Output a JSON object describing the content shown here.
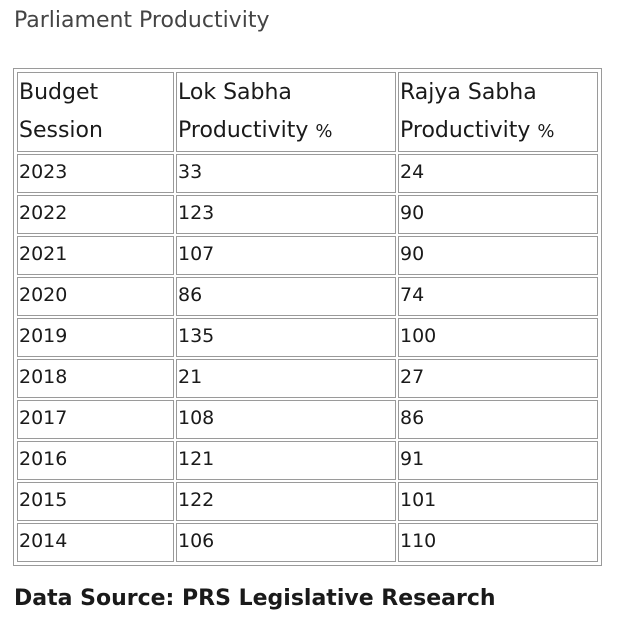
{
  "title": "Parliament Productivity",
  "table": {
    "headers": [
      {
        "line1": "Budget",
        "line2": "Session",
        "unit": ""
      },
      {
        "line1": "Lok Sabha",
        "line2": "Productivity",
        "unit": "%"
      },
      {
        "line1": "Rajya Sabha",
        "line2": "Productivity",
        "unit": "%"
      }
    ],
    "rows": [
      [
        "2023",
        "33",
        "24"
      ],
      [
        "2022",
        "123",
        "90"
      ],
      [
        "2021",
        "107",
        "90"
      ],
      [
        "2020",
        "86",
        "74"
      ],
      [
        "2019",
        "135",
        "100"
      ],
      [
        "2018",
        "21",
        "27"
      ],
      [
        "2017",
        "108",
        "86"
      ],
      [
        "2016",
        "121",
        "91"
      ],
      [
        "2015",
        "122",
        "101"
      ],
      [
        "2014",
        "106",
        "110"
      ]
    ]
  },
  "source": "Data Source: PRS Legislative Research"
}
